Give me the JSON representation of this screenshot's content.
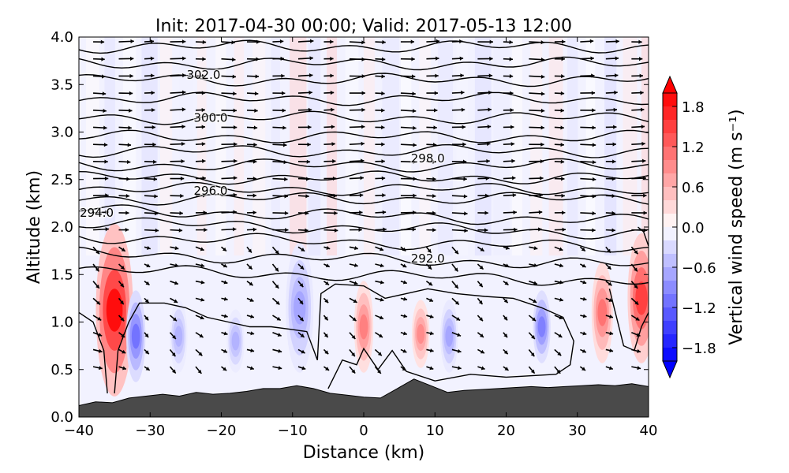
{
  "chart_data": {
    "type": "heatmap",
    "title": "Init: 2017-04-30 00:00; Valid: 2017-05-13 12:00",
    "xlabel": "Distance (km)",
    "ylabel": "Altitude (km)",
    "xlim": [
      -40,
      40
    ],
    "ylim": [
      0.0,
      4.0
    ],
    "x_ticks": [
      -40,
      -30,
      -20,
      -10,
      0,
      10,
      20,
      30,
      40
    ],
    "x_tick_labels": [
      "−40",
      "−30",
      "−20",
      "−10",
      "0",
      "10",
      "20",
      "30",
      "40"
    ],
    "y_ticks": [
      0.0,
      0.5,
      1.0,
      1.5,
      2.0,
      2.5,
      3.0,
      3.5,
      4.0
    ],
    "y_tick_labels": [
      "0.0",
      "0.5",
      "1.0",
      "1.5",
      "2.0",
      "2.5",
      "3.0",
      "3.5",
      "4.0"
    ],
    "colorbar": {
      "label": "Vertical wind speed (m s⁻¹)",
      "range": [
        -2.0,
        2.0
      ],
      "extend": "both",
      "ticks": [
        -1.8,
        -1.2,
        -0.6,
        0.0,
        0.6,
        1.2,
        1.8
      ],
      "tick_labels": [
        "−1.8",
        "−1.2",
        "−0.6",
        "0.0",
        "0.6",
        "1.2",
        "1.8"
      ],
      "levels": 20,
      "colormap": "bwr",
      "min_color": "#0000ff",
      "mid_color": "#ffffff",
      "max_color": "#ff0000"
    },
    "contour_labels": [
      {
        "text": "302.0",
        "x": -22.5,
        "y": 3.6
      },
      {
        "text": "300.0",
        "x": -21.5,
        "y": 3.15
      },
      {
        "text": "298.0",
        "x": 9.0,
        "y": 2.72
      },
      {
        "text": "296.0",
        "x": -21.5,
        "y": 2.38
      },
      {
        "text": "294.0",
        "x": -37.5,
        "y": 2.15
      },
      {
        "text": "292.0",
        "x": 9.0,
        "y": 1.67
      }
    ],
    "updrafts": [
      {
        "x": -35.0,
        "ymin": 0.25,
        "ymax": 2.0,
        "peak": 1.9
      },
      {
        "x": 0.0,
        "ymin": 0.5,
        "ymax": 1.4,
        "peak": 1.0
      },
      {
        "x": 8.0,
        "ymin": 0.55,
        "ymax": 1.2,
        "peak": 0.9
      },
      {
        "x": 33.5,
        "ymin": 0.6,
        "ymax": 1.6,
        "peak": 1.1
      },
      {
        "x": 39.0,
        "ymin": 0.6,
        "ymax": 1.9,
        "peak": 1.5
      }
    ],
    "downdrafts": [
      {
        "x": -32.0,
        "ymin": 0.4,
        "ymax": 1.3,
        "peak": -1.1
      },
      {
        "x": -26.0,
        "ymin": 0.5,
        "ymax": 1.2,
        "peak": -0.6
      },
      {
        "x": -18.0,
        "ymin": 0.5,
        "ymax": 1.1,
        "peak": -0.6
      },
      {
        "x": -9.0,
        "ymin": 0.5,
        "ymax": 1.8,
        "peak": -0.7
      },
      {
        "x": 12.0,
        "ymin": 0.5,
        "ymax": 1.2,
        "peak": -0.7
      },
      {
        "x": 25.0,
        "ymin": 0.6,
        "ymax": 1.3,
        "peak": -1.0
      }
    ],
    "terrain_top_km": [
      0.12,
      0.16,
      0.15,
      0.2,
      0.22,
      0.24,
      0.22,
      0.26,
      0.24,
      0.25,
      0.27,
      0.3,
      0.3,
      0.33,
      0.3,
      0.25,
      0.23,
      0.21,
      0.2,
      0.3,
      0.4,
      0.33,
      0.26,
      0.28,
      0.29,
      0.3,
      0.31,
      0.32,
      0.31,
      0.32,
      0.33,
      0.34,
      0.33,
      0.35,
      0.32
    ]
  }
}
